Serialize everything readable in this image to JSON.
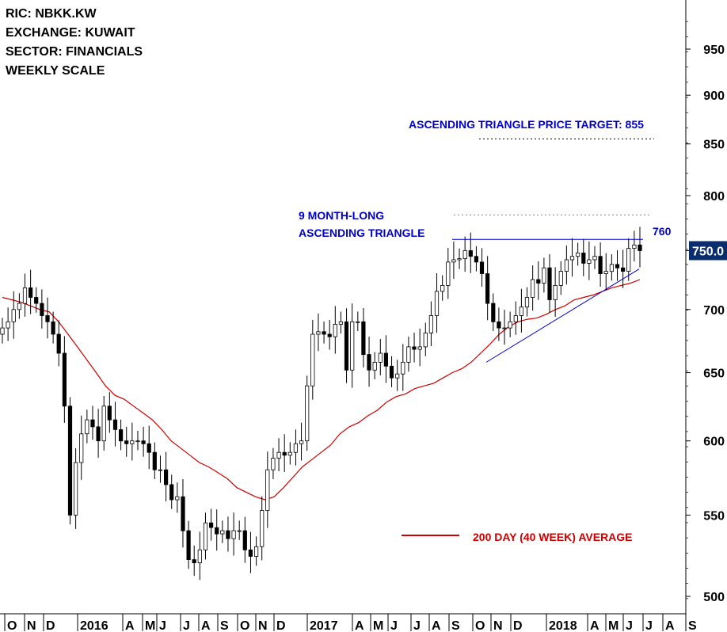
{
  "header": {
    "ric": "RIC: NBKK.KW",
    "exchange": "EXCHANGE: KUWAIT",
    "sector": "SECTOR: FINANCIALS",
    "scale": "WEEKLY SCALE"
  },
  "annotations": {
    "target": "ASCENDING TRIANGLE PRICE TARGET: 855",
    "pattern_line1": "9 MONTH-LONG",
    "pattern_line2": "ASCENDING TRIANGLE",
    "resistance": "760",
    "last_price": "750.0",
    "ma_legend": "200 DAY (40 WEEK) AVERAGE"
  },
  "colors": {
    "annotation_blue": "#0000cc",
    "ma_red": "#cc0000",
    "last_price_bg": "#0a2d6e"
  },
  "chart_data": {
    "type": "candlestick",
    "scale": "log",
    "ylim": [
      475,
      1000
    ],
    "y_ticks": [
      500,
      550,
      600,
      650,
      700,
      750,
      800,
      850,
      900,
      950
    ],
    "x_ticks": [
      "O",
      "N",
      "D",
      "2016",
      "A",
      "M",
      "J",
      "J",
      "A",
      "S",
      "O",
      "N",
      "D",
      "2017",
      "A",
      "M",
      "J",
      "J",
      "A",
      "S",
      "O",
      "N",
      "D",
      "2018",
      "A",
      "M",
      "J",
      "J",
      "A",
      "S"
    ],
    "close": [
      685,
      690,
      700,
      705,
      718,
      710,
      705,
      695,
      690,
      680,
      665,
      625,
      550,
      585,
      605,
      615,
      610,
      600,
      625,
      615,
      608,
      600,
      598,
      600,
      600,
      598,
      592,
      580,
      580,
      570,
      560,
      562,
      540,
      522,
      520,
      528,
      545,
      542,
      538,
      540,
      535,
      540,
      540,
      528,
      524,
      530,
      553,
      580,
      588,
      592,
      590,
      592,
      598,
      600,
      640,
      680,
      682,
      680,
      678,
      688,
      690,
      652,
      690,
      690,
      664,
      652,
      658,
      665,
      655,
      646,
      649,
      658,
      670,
      668,
      670,
      681,
      695,
      715,
      720,
      740,
      742,
      743,
      750,
      745,
      740,
      730,
      705,
      690,
      685,
      685,
      690,
      695,
      702,
      710,
      725,
      722,
      735,
      708,
      720,
      732,
      742,
      745,
      748,
      739,
      742,
      745,
      730,
      732,
      738,
      735,
      732,
      752,
      755,
      750
    ],
    "ma_40w": [
      710,
      708,
      706,
      703,
      700,
      698,
      690,
      680,
      670,
      660,
      650,
      640,
      633,
      630,
      625,
      620,
      615,
      608,
      600,
      595,
      590,
      585,
      582,
      578,
      574,
      568,
      565,
      562,
      560,
      562,
      568,
      575,
      582,
      587,
      592,
      597,
      605,
      610,
      613,
      618,
      622,
      628,
      632,
      634,
      638,
      640,
      642,
      646,
      650,
      653,
      658,
      665,
      672,
      680,
      686,
      690,
      692,
      693,
      696,
      700,
      703,
      708,
      710,
      712,
      715,
      718,
      720,
      722,
      725
    ]
  }
}
